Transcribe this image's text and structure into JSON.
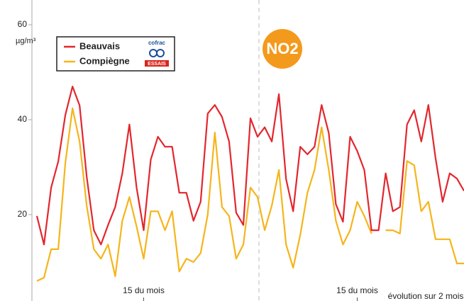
{
  "chart_data": {
    "type": "line",
    "title": "NO2",
    "y_label": "µg/m³",
    "note": "évolution sur 2 mois",
    "legend_logo": {
      "top": "cofrac",
      "bottom": "ESSAIS"
    },
    "categories": [
      null,
      null,
      null,
      null,
      null,
      null,
      null,
      null,
      null,
      null,
      null,
      null,
      null,
      null,
      null,
      "15 du mois",
      null,
      null,
      null,
      null,
      null,
      null,
      null,
      null,
      null,
      null,
      null,
      null,
      null,
      null,
      null,
      null,
      null,
      null,
      null,
      null,
      null,
      null,
      null,
      null,
      null,
      null,
      null,
      null,
      null,
      "15 du mois",
      null,
      null,
      null,
      null,
      null,
      null,
      null,
      null,
      null,
      null,
      null,
      null,
      null,
      null,
      null
    ],
    "series": [
      {
        "name": "Beauvais",
        "color": "#e3262e",
        "values": [
          19.7,
          13.7,
          25.7,
          31.2,
          41,
          47,
          43,
          28,
          16.7,
          13.7,
          17.8,
          21.6,
          28.7,
          39,
          25.7,
          16.7,
          31.6,
          36.4,
          34.3,
          34.3,
          24.6,
          24.6,
          18.7,
          22.7,
          41.3,
          43.1,
          40.6,
          35.4,
          20.4,
          17.8,
          40.3,
          36.4,
          38.4,
          35.4,
          45.4,
          27.5,
          20.7,
          34.3,
          32.7,
          34.3,
          43.1,
          37.2,
          22.2,
          18.5,
          36.4,
          33.4,
          29.4,
          16.7,
          16.7,
          28.7,
          20.7,
          21.6,
          39,
          42,
          35.4,
          43.1,
          31.9,
          22.7,
          28.7,
          27.6,
          25
        ]
      },
      {
        "name": "Compiègne",
        "color": "#f5b51b",
        "values": [
          6,
          6.7,
          12.7,
          12.7,
          30.9,
          42.4,
          35.4,
          21.9,
          12.7,
          10.7,
          13.7,
          7,
          18.7,
          23.7,
          17.5,
          10.7,
          20.7,
          20.7,
          16.7,
          20.7,
          8,
          10.7,
          10,
          11.9,
          20,
          37.3,
          21.6,
          19.7,
          10.7,
          13.7,
          25.7,
          23.7,
          16.7,
          21.9,
          29.4,
          13.7,
          8.8,
          15.7,
          24.6,
          29.4,
          38.4,
          29.4,
          18.7,
          13.7,
          16.7,
          22.7,
          19.7,
          16,
          null,
          16.7,
          16.7,
          16,
          31.3,
          30.4,
          20.7,
          22.7,
          14.8,
          14.8,
          14.8,
          9.7,
          9.7
        ]
      }
    ],
    "ylim": [
      0,
      60
    ],
    "yticks": [
      0,
      20,
      40,
      60
    ],
    "grid": false
  }
}
